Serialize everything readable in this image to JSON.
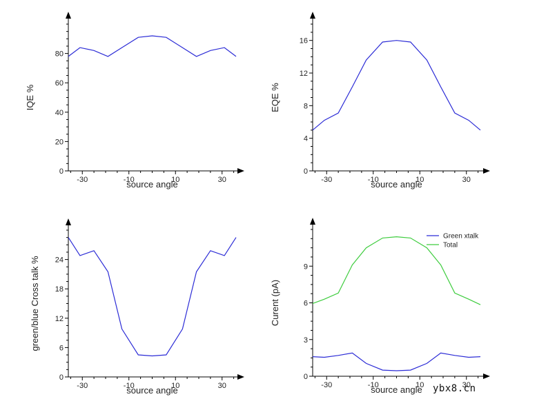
{
  "watermark": "ybx8.cn",
  "chart_data": [
    {
      "id": "iqe",
      "type": "line",
      "xlabel": "source angle",
      "ylabel": "IQE %",
      "xlim": [
        -36,
        36
      ],
      "ylim": [
        0,
        100
      ],
      "xticks": [
        -30,
        -10,
        10,
        30
      ],
      "yticks": [
        0,
        20,
        40,
        60,
        80
      ],
      "series": [
        {
          "name": "IQE",
          "color": "#2b2bd6",
          "x": [
            -36,
            -31,
            -25,
            -19,
            -13,
            -6,
            0,
            6,
            13,
            19,
            25,
            31,
            36
          ],
          "y": [
            78,
            84,
            82,
            78,
            84,
            91,
            92,
            91,
            84,
            78,
            82,
            84,
            78
          ]
        }
      ]
    },
    {
      "id": "eqe",
      "type": "line",
      "xlabel": "source angle",
      "ylabel": "EQE %",
      "xlim": [
        -36,
        36
      ],
      "ylim": [
        0,
        18
      ],
      "xticks": [
        -30,
        -10,
        10,
        30
      ],
      "yticks": [
        0,
        4,
        8,
        12,
        16
      ],
      "series": [
        {
          "name": "EQE",
          "color": "#2b2bd6",
          "x": [
            -36,
            -31,
            -25,
            -19,
            -13,
            -6,
            0,
            6,
            13,
            19,
            25,
            31,
            36
          ],
          "y": [
            5.0,
            6.2,
            7.1,
            10.3,
            13.6,
            15.8,
            16.0,
            15.8,
            13.6,
            10.3,
            7.1,
            6.2,
            5.0
          ]
        }
      ]
    },
    {
      "id": "crosstalk",
      "type": "line",
      "xlabel": "source angle",
      "ylabel": "green/blue Cross talk %",
      "xlim": [
        -36,
        36
      ],
      "ylim": [
        0,
        30
      ],
      "xticks": [
        -30,
        -10,
        10,
        30
      ],
      "yticks": [
        0,
        6,
        12,
        18,
        24
      ],
      "series": [
        {
          "name": "Cross talk",
          "color": "#2b2bd6",
          "x": [
            -36,
            -31,
            -25,
            -19,
            -13,
            -6,
            0,
            6,
            13,
            19,
            25,
            31,
            36
          ],
          "y": [
            28.5,
            24.8,
            25.8,
            21.5,
            9.8,
            4.5,
            4.3,
            4.5,
            9.8,
            21.5,
            25.8,
            24.8,
            28.5
          ]
        }
      ]
    },
    {
      "id": "current",
      "type": "line",
      "xlabel": "source angle",
      "ylabel": "Curent (pA)",
      "xlim": [
        -36,
        36
      ],
      "ylim": [
        0,
        12
      ],
      "xticks": [
        -30,
        -10,
        10,
        30
      ],
      "yticks": [
        0,
        3,
        6,
        9
      ],
      "legend_position": "top-right",
      "series": [
        {
          "name": "Green xtalk",
          "color": "#2b2bd6",
          "x": [
            -36,
            -31,
            -25,
            -19,
            -13,
            -6,
            0,
            6,
            13,
            19,
            25,
            31,
            36
          ],
          "y": [
            1.6,
            1.55,
            1.7,
            1.9,
            1.05,
            0.5,
            0.45,
            0.5,
            1.05,
            1.9,
            1.7,
            1.55,
            1.6
          ]
        },
        {
          "name": "Total",
          "color": "#3dcc3d",
          "x": [
            -36,
            -31,
            -25,
            -19,
            -13,
            -6,
            0,
            6,
            13,
            19,
            25,
            31,
            36
          ],
          "y": [
            5.95,
            6.3,
            6.8,
            9.1,
            10.5,
            11.3,
            11.4,
            11.3,
            10.5,
            9.1,
            6.8,
            6.3,
            5.85
          ]
        }
      ]
    }
  ]
}
